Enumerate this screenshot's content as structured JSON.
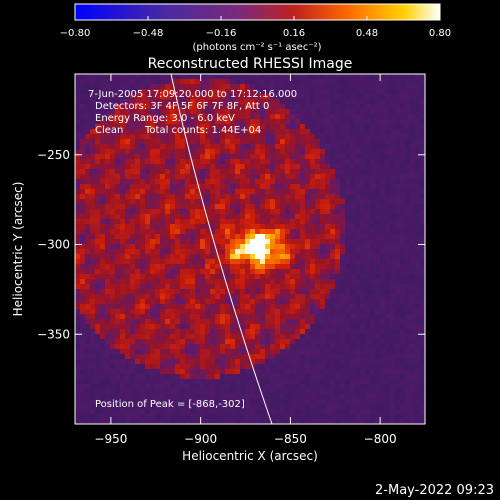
{
  "chart_data": {
    "type": "heatmap",
    "title": "Reconstructed RHESSI Image",
    "xlabel": "Heliocentric X (arcsec)",
    "ylabel": "Heliocentric Y (arcsec)",
    "xlim": [
      -970,
      -775
    ],
    "ylim": [
      -400,
      -205
    ],
    "x_ticks": [
      -950,
      -900,
      -850,
      -800
    ],
    "y_ticks": [
      -250,
      -300,
      -350
    ],
    "x_tick_labels": [
      "−950",
      "−900",
      "−850",
      "−800"
    ],
    "y_tick_labels": [
      "−250",
      "−300",
      "−350"
    ],
    "colorbar": {
      "range": [
        -0.8,
        0.8
      ],
      "ticks": [
        -0.8,
        -0.48,
        -0.16,
        0.16,
        0.48,
        0.8
      ],
      "tick_labels": [
        "−0.80",
        "−0.48",
        "−0.16",
        "0.16",
        "0.48",
        "0.80"
      ],
      "unit_label": "(photons cm⁻² s⁻¹ asec⁻²)",
      "colors": [
        "#0000ff",
        "#4a2aa0",
        "#7a2a7a",
        "#c02020",
        "#ff6a00",
        "#ffd000",
        "#ffffff"
      ]
    },
    "peak": {
      "x": -868,
      "y": -302
    },
    "annotations": {
      "time_range": "7-Jun-2005 17:09:20.000 to 17:12:16.000",
      "detectors": "Detectors: 3F 4F 5F 6F 7F 8F, Att 0",
      "energy": "Energy Range: 3.0 - 6.0 keV",
      "method": "Clean",
      "counts": "Total counts: 1.44E+04",
      "peak_label": "Position of Peak = [-868,-302]"
    },
    "timestamp": "2-May-2022 09:23"
  }
}
